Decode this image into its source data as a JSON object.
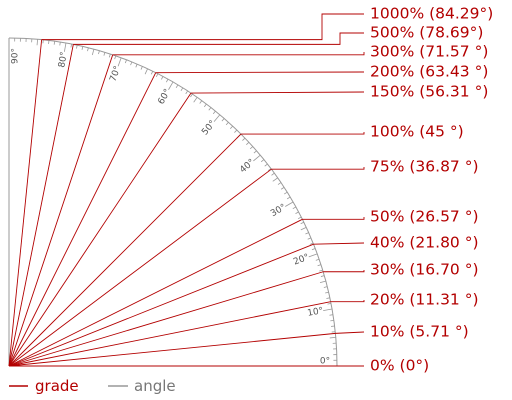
{
  "colors": {
    "grade": "#b30000",
    "angle": "#999999",
    "tick_text": "#555555"
  },
  "grades": [
    {
      "label": "0%  (0°)",
      "percent": 0,
      "angle_deg": 0
    },
    {
      "label": "10% (5.71 °)",
      "percent": 10,
      "angle_deg": 5.71
    },
    {
      "label": "20% (11.31 °)",
      "percent": 20,
      "angle_deg": 11.31
    },
    {
      "label": "30% (16.70 °)",
      "percent": 30,
      "angle_deg": 16.7
    },
    {
      "label": "40% (21.80 °)",
      "percent": 40,
      "angle_deg": 21.8
    },
    {
      "label": "50% (26.57 °)",
      "percent": 50,
      "angle_deg": 26.57
    },
    {
      "label": "75% (36.87 °)",
      "percent": 75,
      "angle_deg": 36.87
    },
    {
      "label": "100% (45 °)",
      "percent": 100,
      "angle_deg": 45
    },
    {
      "label": "150% (56.31 °)",
      "percent": 150,
      "angle_deg": 56.31
    },
    {
      "label": "200% (63.43 °)",
      "percent": 200,
      "angle_deg": 63.43
    },
    {
      "label": "300% (71.57 °)",
      "percent": 300,
      "angle_deg": 71.57
    },
    {
      "label": "500%  (78.69°)",
      "percent": 500,
      "angle_deg": 78.69
    },
    {
      "label": "1000%  (84.29°)",
      "percent": 1000,
      "angle_deg": 84.29
    }
  ],
  "angle_ticks": [
    {
      "label": "0°",
      "deg": 0
    },
    {
      "label": "10°",
      "deg": 10
    },
    {
      "label": "20°",
      "deg": 20
    },
    {
      "label": "30°",
      "deg": 30
    },
    {
      "label": "40°",
      "deg": 40
    },
    {
      "label": "50°",
      "deg": 50
    },
    {
      "label": "60°",
      "deg": 60
    },
    {
      "label": "70°",
      "deg": 70
    },
    {
      "label": "80°",
      "deg": 80
    },
    {
      "label": "90°",
      "deg": 90
    }
  ],
  "legend": {
    "grade_label": "grade",
    "angle_label": "angle"
  }
}
